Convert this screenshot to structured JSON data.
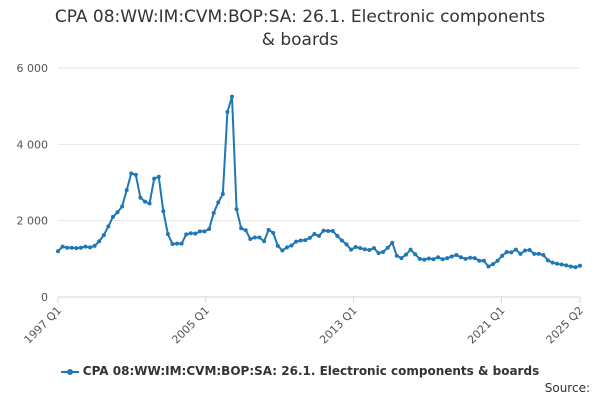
{
  "chart_data": {
    "type": "line",
    "title_lines": [
      "CPA 08:WW:IM:CVM:BOP:SA: 26.1. Electronic components",
      "& boards"
    ],
    "xlabel": "",
    "ylabel": "",
    "x_tick_labels": [
      "1997 Q1",
      "2005 Q1",
      "2013 Q1",
      "2021 Q1",
      "2025 Q2"
    ],
    "y_ticks": [
      0,
      2000,
      4000,
      6000
    ],
    "y_tick_labels": [
      "0",
      "2 000",
      "4 000",
      "6 000"
    ],
    "ylim": [
      0,
      6000
    ],
    "grid": true,
    "legend_position": "bottom",
    "series": [
      {
        "name": "CPA 08:WW:IM:CVM:BOP:SA: 26.1. Electronic components & boards",
        "color": "#1f77b4",
        "start_period": "1997 Q1",
        "end_period": "2025 Q2",
        "values": [
          1200,
          1320,
          1290,
          1290,
          1280,
          1290,
          1320,
          1300,
          1340,
          1460,
          1620,
          1850,
          2100,
          2220,
          2370,
          2800,
          3240,
          3200,
          2600,
          2500,
          2450,
          3100,
          3150,
          2250,
          1650,
          1390,
          1400,
          1400,
          1640,
          1670,
          1660,
          1720,
          1720,
          1780,
          2200,
          2480,
          2700,
          4850,
          5250,
          2300,
          1800,
          1750,
          1520,
          1560,
          1560,
          1460,
          1760,
          1680,
          1340,
          1220,
          1300,
          1350,
          1450,
          1480,
          1490,
          1550,
          1650,
          1600,
          1740,
          1730,
          1730,
          1600,
          1480,
          1380,
          1240,
          1310,
          1280,
          1250,
          1230,
          1280,
          1150,
          1180,
          1290,
          1420,
          1080,
          1020,
          1110,
          1240,
          1120,
          1000,
          980,
          1010,
          990,
          1040,
          990,
          1020,
          1060,
          1100,
          1040,
          1000,
          1030,
          1020,
          950,
          950,
          800,
          860,
          950,
          1080,
          1180,
          1170,
          1240,
          1130,
          1220,
          1230,
          1130,
          1130,
          1100,
          960,
          900,
          870,
          850,
          830,
          800,
          780,
          820
        ]
      }
    ]
  },
  "legend": {
    "label": "CPA 08:WW:IM:CVM:BOP:SA: 26.1. Electronic components & boards"
  },
  "source": {
    "label": "Source:"
  }
}
